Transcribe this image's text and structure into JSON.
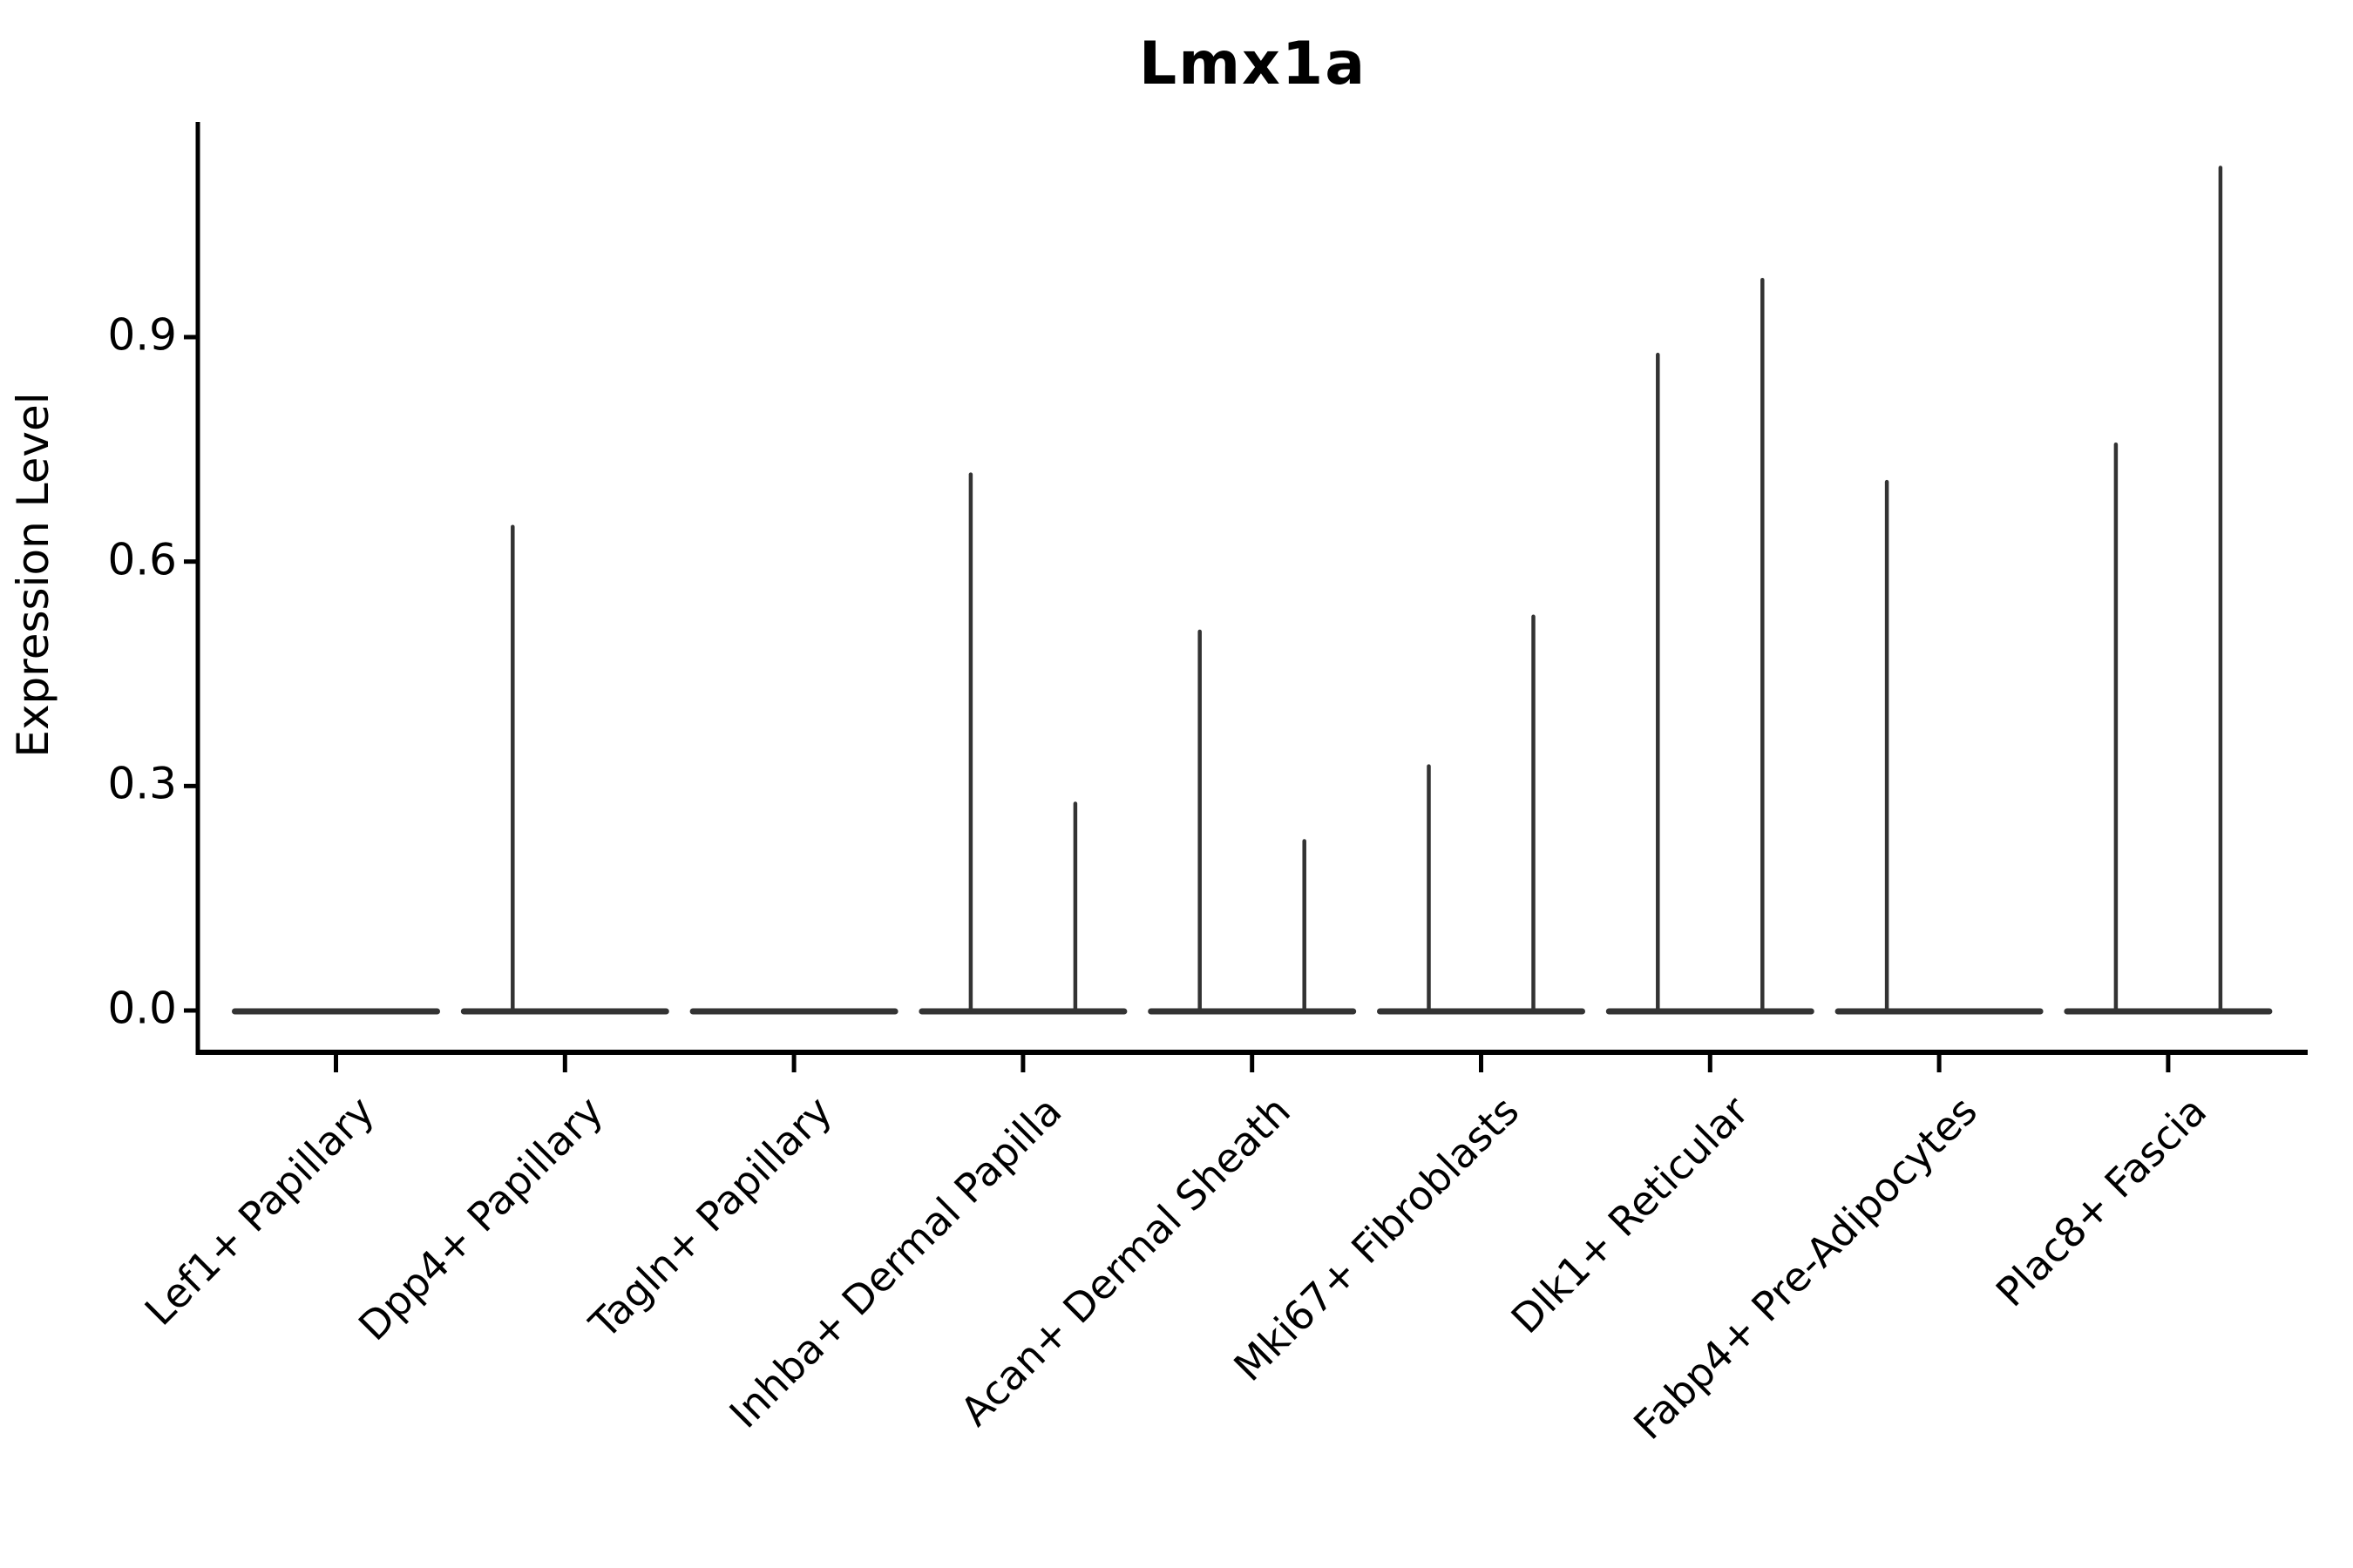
{
  "chart_data": {
    "type": "violin",
    "title": "Lmx1a",
    "ylabel": "Expression Level",
    "xlabel": "",
    "ytick_labels": [
      "0.0",
      "0.3",
      "0.6",
      "0.9"
    ],
    "ytick_values": [
      0.0,
      0.3,
      0.6,
      0.9
    ],
    "ylim": [
      -0.05,
      1.19
    ],
    "grid": "off",
    "legend": "none",
    "description": "Split violin plot; expression concentrated at 0 so each violin renders as a flat baseline at 0 with a thin spike up to its maximum. Two violins (left/right) per category.",
    "categories": [
      {
        "label": "Lef1+ Papillary",
        "violin_max_left": 0.0,
        "violin_max_right": 0.0
      },
      {
        "label": "Dpp4+ Papillary",
        "violin_max_left": 0.65,
        "violin_max_right": 0.0
      },
      {
        "label": "Tagln+ Papillary",
        "violin_max_left": 0.0,
        "violin_max_right": 0.0
      },
      {
        "label": "Inhba+ Dermal Papilla",
        "violin_max_left": 0.72,
        "violin_max_right": 0.28
      },
      {
        "label": "Acan+ Dermal Sheath",
        "violin_max_left": 0.51,
        "violin_max_right": 0.23
      },
      {
        "label": "Mki67+ Fibroblasts",
        "violin_max_left": 0.33,
        "violin_max_right": 0.53
      },
      {
        "label": "Dlk1+ Reticular",
        "violin_max_left": 0.88,
        "violin_max_right": 0.98
      },
      {
        "label": "Fabp4+ Pre-Adipocytes",
        "violin_max_left": 0.71,
        "violin_max_right": 0.0
      },
      {
        "label": "Plac8+ Fascia",
        "violin_max_left": 0.76,
        "violin_max_right": 1.13
      }
    ],
    "colors": {
      "violin_stroke": "#333333",
      "axis": "#000000",
      "text": "#000000",
      "background": "#ffffff"
    }
  }
}
